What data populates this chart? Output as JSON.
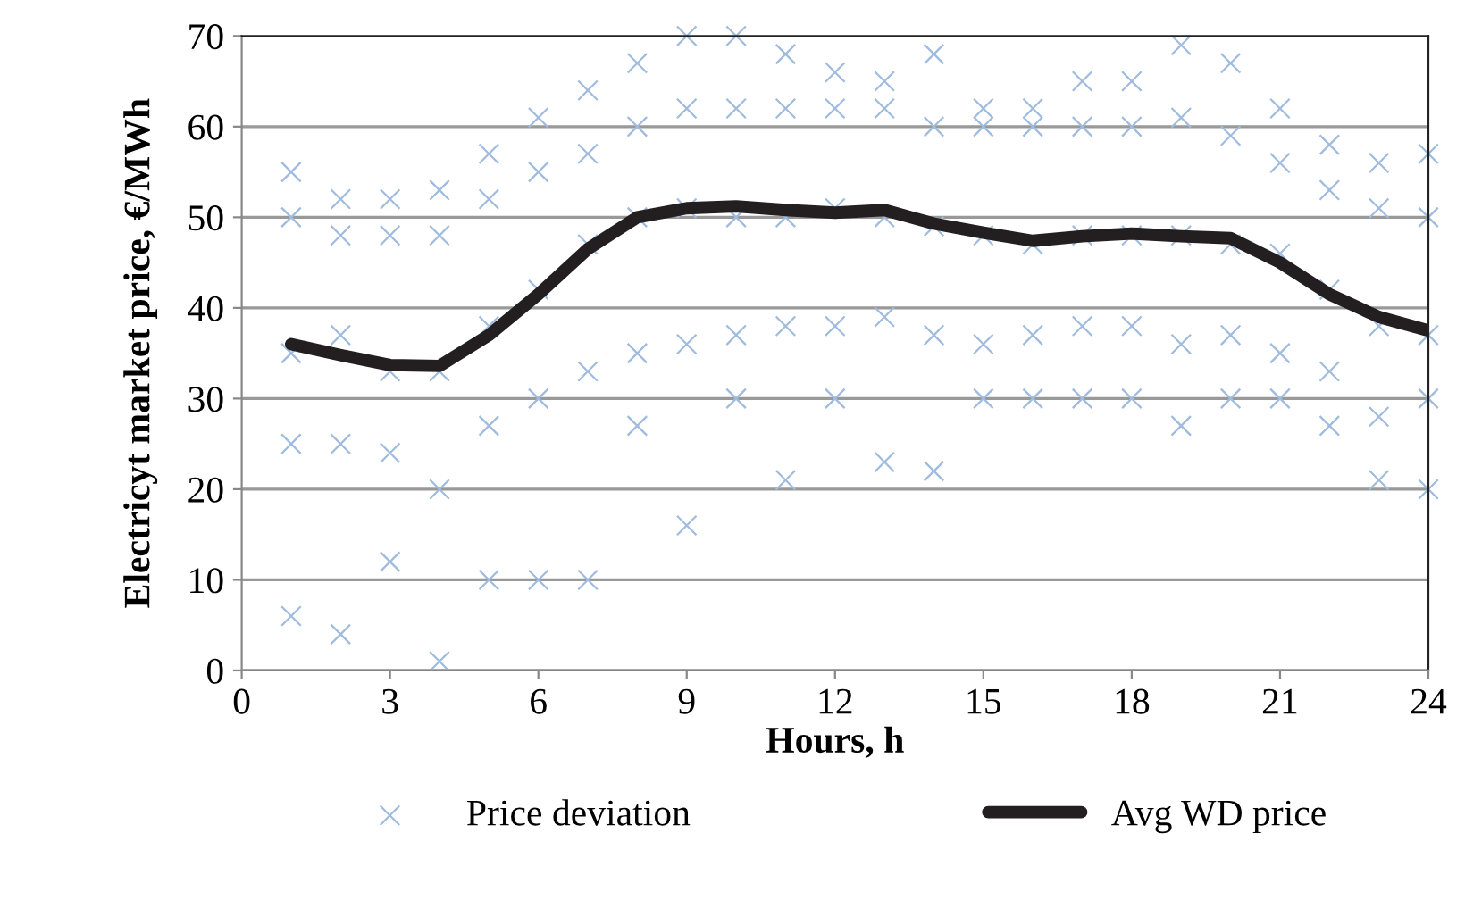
{
  "chart_data": {
    "type": "line",
    "xlabel": "Hours, h",
    "ylabel": "Electricyt market price, €/MWh",
    "xlim": [
      0,
      24
    ],
    "xticks": [
      0,
      3,
      6,
      9,
      12,
      15,
      18,
      21,
      24
    ],
    "ylim": [
      0,
      70
    ],
    "yticks": [
      0,
      10,
      20,
      30,
      40,
      50,
      60,
      70
    ],
    "grid": "y",
    "legend": "bottom",
    "series": [
      {
        "name": "Price deviation",
        "type": "scatter",
        "marker": "cross",
        "color": "#9fbbdd",
        "x": [
          1,
          1,
          1,
          1,
          1,
          2,
          2,
          2,
          2,
          2,
          3,
          3,
          3,
          3,
          3,
          4,
          4,
          4,
          4,
          4,
          5,
          5,
          5,
          5,
          5,
          6,
          6,
          6,
          6,
          6,
          7,
          7,
          7,
          7,
          7,
          8,
          8,
          8,
          8,
          8,
          9,
          9,
          9,
          9,
          9,
          10,
          10,
          10,
          10,
          10,
          11,
          11,
          11,
          11,
          11,
          12,
          12,
          12,
          12,
          12,
          13,
          13,
          13,
          13,
          13,
          14,
          14,
          14,
          14,
          14,
          15,
          15,
          15,
          15,
          15,
          16,
          16,
          16,
          16,
          16,
          17,
          17,
          17,
          17,
          17,
          18,
          18,
          18,
          18,
          18,
          19,
          19,
          19,
          19,
          19,
          20,
          20,
          20,
          20,
          20,
          21,
          21,
          21,
          21,
          21,
          22,
          22,
          22,
          22,
          22,
          23,
          23,
          23,
          23,
          23,
          24,
          24,
          24,
          24,
          24
        ],
        "values": [
          6,
          25,
          35,
          50,
          55,
          4,
          25,
          37,
          48,
          52,
          12,
          24,
          33,
          48,
          52,
          1,
          20,
          33,
          48,
          53,
          10,
          27,
          38,
          52,
          57,
          10,
          30,
          42,
          55,
          61,
          10,
          33,
          47,
          57,
          64,
          27,
          35,
          50,
          60,
          67,
          16,
          36,
          51,
          62,
          70,
          30,
          37,
          50,
          62,
          70,
          21,
          38,
          50,
          62,
          68,
          30,
          38,
          51,
          62,
          66,
          23,
          39,
          50,
          62,
          65,
          22,
          37,
          49,
          60,
          68,
          30,
          36,
          48,
          60,
          62,
          30,
          37,
          47,
          60,
          62,
          30,
          38,
          48,
          60,
          65,
          30,
          38,
          48,
          60,
          65,
          27,
          36,
          48,
          61,
          69,
          30,
          37,
          47,
          59,
          67,
          30,
          35,
          46,
          56,
          62,
          27,
          33,
          42,
          53,
          58,
          21,
          28,
          38,
          51,
          56,
          20,
          30,
          37,
          50,
          57
        ]
      },
      {
        "name": "Avg WD price",
        "marker": "none",
        "line_style": "solid",
        "color": "#231f20",
        "x": [
          1,
          2,
          3,
          4,
          5,
          6,
          7,
          8,
          9,
          10,
          11,
          12,
          13,
          14,
          15,
          16,
          17,
          18,
          19,
          20,
          21,
          22,
          23,
          24
        ],
        "values": [
          36,
          34.8,
          33.7,
          33.6,
          37,
          41.5,
          46.5,
          50,
          51,
          51.2,
          50.8,
          50.5,
          50.8,
          49.3,
          48.3,
          47.4,
          47.9,
          48.2,
          47.9,
          47.7,
          45,
          41.5,
          39,
          37.5
        ]
      }
    ]
  }
}
